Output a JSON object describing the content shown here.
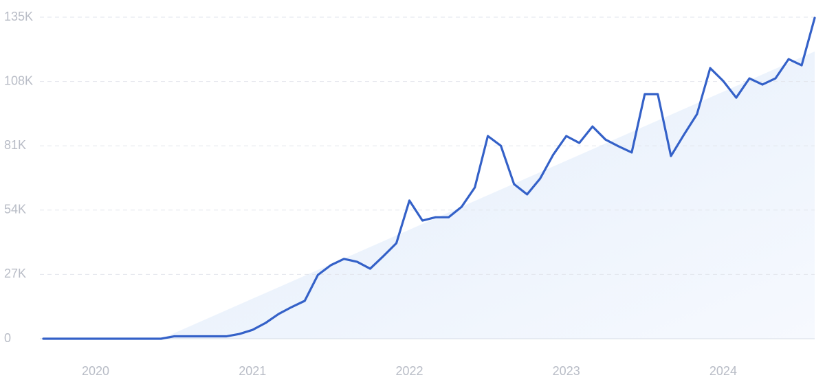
{
  "chart_data": {
    "type": "line",
    "x": [
      2019.667,
      2019.75,
      2019.833,
      2019.917,
      2020.0,
      2020.083,
      2020.167,
      2020.25,
      2020.333,
      2020.417,
      2020.5,
      2020.583,
      2020.667,
      2020.75,
      2020.833,
      2020.917,
      2021.0,
      2021.083,
      2021.167,
      2021.25,
      2021.333,
      2021.417,
      2021.5,
      2021.583,
      2021.667,
      2021.75,
      2021.833,
      2021.917,
      2022.0,
      2022.083,
      2022.167,
      2022.25,
      2022.333,
      2022.417,
      2022.5,
      2022.583,
      2022.667,
      2022.75,
      2022.833,
      2022.917,
      2023.0,
      2023.083,
      2023.167,
      2023.25,
      2023.333,
      2023.417,
      2023.5,
      2023.583,
      2023.667,
      2023.75,
      2023.833,
      2023.917,
      2024.0,
      2024.083,
      2024.167,
      2024.25,
      2024.333,
      2024.417,
      2024.5,
      2024.583
    ],
    "series": [
      {
        "color": "#3461c8",
        "values": [
          0,
          0,
          0,
          0,
          0,
          0,
          0,
          0,
          0,
          0,
          1000,
          1000,
          1000,
          1000,
          1000,
          2000,
          3700,
          6600,
          10400,
          13300,
          15900,
          26800,
          30900,
          33500,
          32300,
          29400,
          34600,
          40100,
          58000,
          49600,
          51000,
          51000,
          55400,
          63500,
          85100,
          81000,
          64900,
          60600,
          67200,
          77300,
          85100,
          82200,
          89100,
          83600,
          80800,
          78200,
          102700,
          102700,
          76700,
          85700,
          94300,
          113600,
          108200,
          101200,
          109300,
          106700,
          109300,
          117400,
          114800,
          134700
        ]
      }
    ],
    "trend": {
      "x": [
        2020.42,
        2024.583
      ],
      "values": [
        0,
        120600
      ],
      "color": "#e6effc"
    },
    "xlim": [
      2019.667,
      2024.583
    ],
    "xticks": [
      2020,
      2021,
      2022,
      2023,
      2024
    ],
    "ylim": [
      0,
      135000
    ],
    "yticks": [
      {
        "value": 0,
        "label": "0"
      },
      {
        "value": 27000,
        "label": "27K"
      },
      {
        "value": 54000,
        "label": "54K"
      },
      {
        "value": 81000,
        "label": "81K"
      },
      {
        "value": 108000,
        "label": "108K"
      },
      {
        "value": 135000,
        "label": "135K"
      }
    ],
    "grid": true
  }
}
